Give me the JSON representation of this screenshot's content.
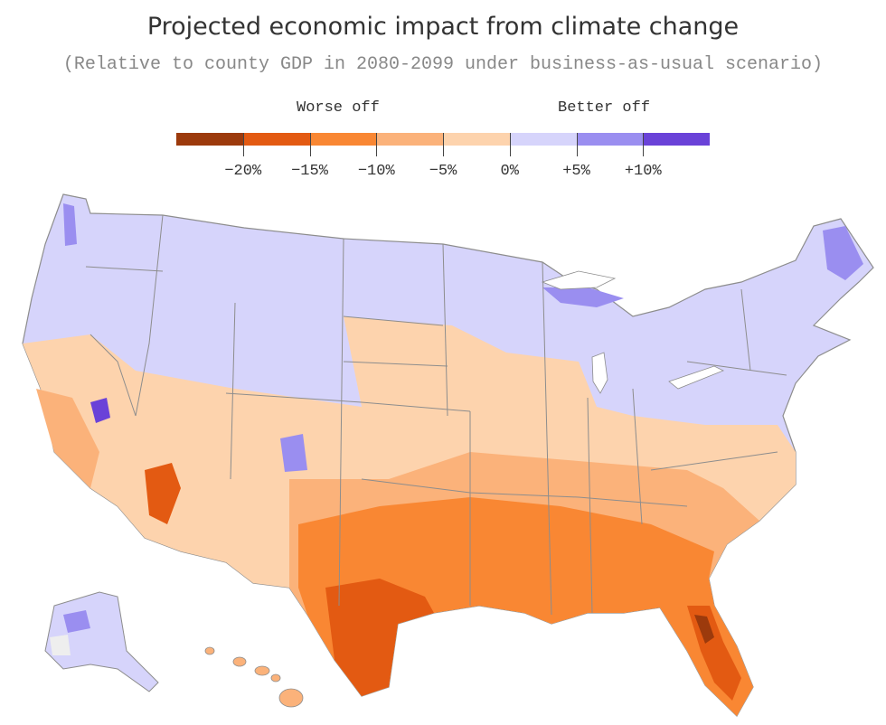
{
  "title": "Projected economic impact from climate change",
  "subtitle": "(Relative to county GDP in 2080-2099 under business-as-usual scenario)",
  "legend": {
    "worse_label": "Worse off",
    "better_label": "Better off",
    "bins": [
      {
        "range": "< -20%",
        "color": "#9c3a0c"
      },
      {
        "range": "-20% to -15%",
        "color": "#e35a12"
      },
      {
        "range": "-15% to -10%",
        "color": "#f98733"
      },
      {
        "range": "-10% to -5%",
        "color": "#fbb27a"
      },
      {
        "range": "-5% to 0%",
        "color": "#fdd3ad"
      },
      {
        "range": "0% to +5%",
        "color": "#d6d4fb"
      },
      {
        "range": "+5% to +10%",
        "color": "#9a8ef0"
      },
      {
        "range": "> +10%",
        "color": "#6a42d8"
      }
    ],
    "ticks": [
      "−20%",
      "−15%",
      "−10%",
      "−5%",
      "0%",
      "+5%",
      "+10%"
    ]
  },
  "map": {
    "subject": "Contiguous US, Alaska and Hawaii counties",
    "colors": {
      "state_border": "#8d8d8d",
      "lakes": "#ffffff",
      "no_data": "#eeeeee"
    }
  }
}
